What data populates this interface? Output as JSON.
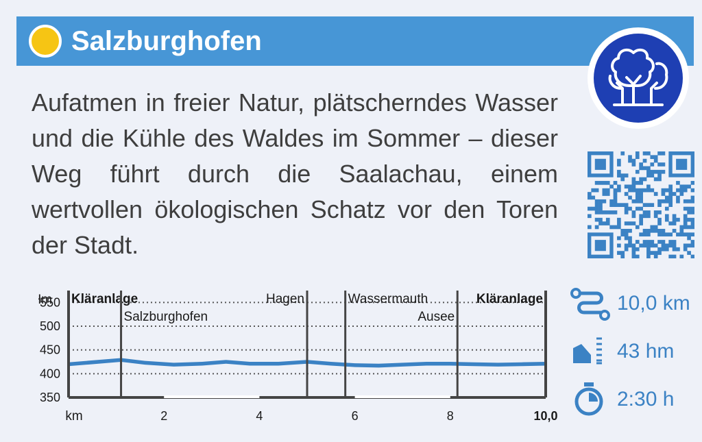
{
  "header": {
    "title": "Salzburghofen",
    "sun_icon": "sun-icon",
    "accent_color": "#4796d6"
  },
  "badge": {
    "icon": "forest-trees-icon",
    "color": "#1e3fb3"
  },
  "description": "Aufatmen in freier Natur, plätscherndes Wasser und die Kühle des Waldes im Sommer – dieser Weg führt durch die Saalachau, einem wertvollen ökologischen Schatz vor den Toren der Stadt.",
  "qr_code": {
    "icon": "qr-code",
    "color": "#3b82c4"
  },
  "profile": {
    "y_unit": "Hm",
    "x_unit": "km",
    "y_ticks": [
      "550",
      "500",
      "450",
      "400",
      "350"
    ],
    "x_ticks": [
      {
        "km": 2,
        "label": "2"
      },
      {
        "km": 4,
        "label": "4"
      },
      {
        "km": 6,
        "label": "6"
      },
      {
        "km": 8,
        "label": "8"
      },
      {
        "km": 10,
        "label": "10,0"
      }
    ],
    "waypoints": [
      {
        "km": 0,
        "name": "Kläranlage",
        "bold": true,
        "row": 1,
        "anchor": "start"
      },
      {
        "km": 1.1,
        "name": "Salzburghofen",
        "bold": false,
        "row": 2,
        "anchor": "start"
      },
      {
        "km": 5,
        "name": "Hagen",
        "bold": false,
        "row": 1,
        "anchor": "end"
      },
      {
        "km": 5.8,
        "name": "Wassermauth",
        "bold": false,
        "row": 1,
        "anchor": "start"
      },
      {
        "km": 8.15,
        "name": "Ausee",
        "bold": false,
        "row": 2,
        "anchor": "end"
      },
      {
        "km": 10,
        "name": "Kläranlage",
        "bold": true,
        "row": 1,
        "anchor": "end"
      }
    ]
  },
  "chart_data": {
    "type": "area",
    "xlabel": "km",
    "ylabel": "Hm",
    "xlim": [
      0,
      10
    ],
    "ylim": [
      350,
      575
    ],
    "gridlines_y": [
      400,
      450,
      500,
      550
    ],
    "series": [
      {
        "x": [
          0,
          0.5,
          1.1,
          1.6,
          2.2,
          2.8,
          3.3,
          3.8,
          4.4,
          5.0,
          5.5,
          6.0,
          6.5,
          7.0,
          7.5,
          8.0,
          8.5,
          9.0,
          9.5,
          10.0
        ],
        "y": [
          420,
          424,
          429,
          423,
          419,
          421,
          425,
          421,
          421,
          425,
          421,
          418,
          417,
          419,
          421,
          421,
          420,
          419,
          420,
          421
        ]
      }
    ],
    "color": "#3b82c4"
  },
  "stats": {
    "distance": "10,0 km",
    "elevation": "43 hm",
    "duration": "2:30 h",
    "color": "#3b82c4"
  }
}
